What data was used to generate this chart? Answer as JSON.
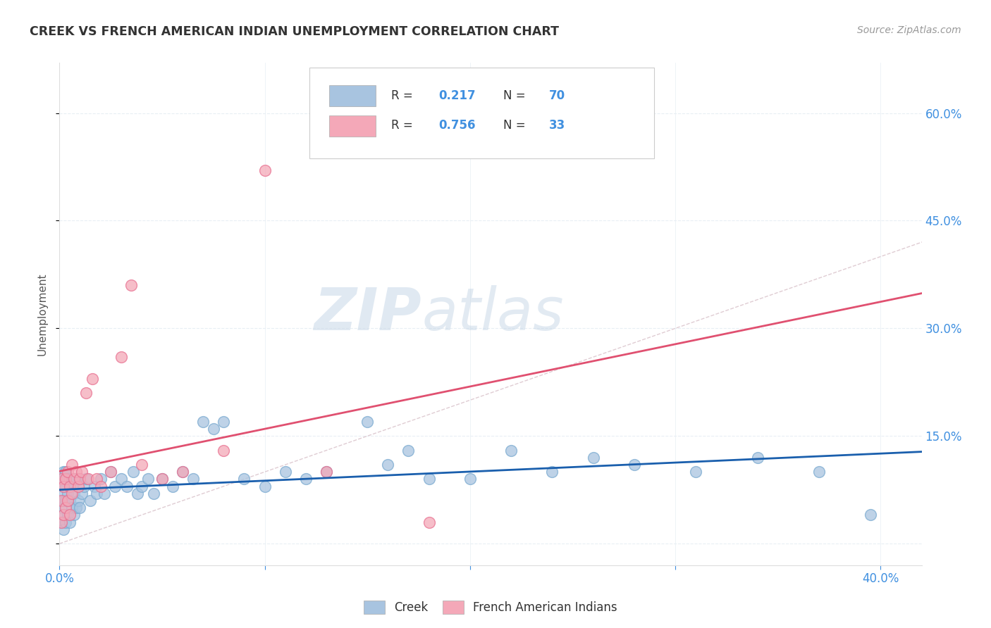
{
  "title": "CREEK VS FRENCH AMERICAN INDIAN UNEMPLOYMENT CORRELATION CHART",
  "source": "Source: ZipAtlas.com",
  "ylabel": "Unemployment",
  "xlim": [
    0.0,
    0.42
  ],
  "ylim": [
    -0.03,
    0.67
  ],
  "creek_R": 0.217,
  "creek_N": 70,
  "french_R": 0.756,
  "french_N": 33,
  "creek_color": "#a8c4e0",
  "creek_edge_color": "#7aaad0",
  "french_color": "#f4a8b8",
  "french_edge_color": "#e87090",
  "creek_line_color": "#1a5fad",
  "french_line_color": "#e05070",
  "diagonal_color": "#d8c0c8",
  "tick_label_color": "#4090e0",
  "title_color": "#333333",
  "source_color": "#999999",
  "watermark_color": "#dce8f4",
  "grid_color": "#e8eef4",
  "legend_text_color": "#333333",
  "legend_value_color": "#4090e0",
  "creek_x": [
    0.001,
    0.001,
    0.001,
    0.001,
    0.002,
    0.002,
    0.002,
    0.002,
    0.002,
    0.003,
    0.003,
    0.003,
    0.003,
    0.004,
    0.004,
    0.004,
    0.005,
    0.005,
    0.005,
    0.006,
    0.006,
    0.007,
    0.007,
    0.008,
    0.008,
    0.009,
    0.01,
    0.01,
    0.011,
    0.012,
    0.013,
    0.015,
    0.017,
    0.018,
    0.02,
    0.022,
    0.025,
    0.027,
    0.03,
    0.033,
    0.036,
    0.038,
    0.04,
    0.043,
    0.046,
    0.05,
    0.055,
    0.06,
    0.065,
    0.07,
    0.075,
    0.08,
    0.09,
    0.1,
    0.11,
    0.12,
    0.13,
    0.15,
    0.16,
    0.17,
    0.18,
    0.2,
    0.22,
    0.24,
    0.26,
    0.28,
    0.31,
    0.34,
    0.37,
    0.395
  ],
  "creek_y": [
    0.03,
    0.05,
    0.07,
    0.09,
    0.02,
    0.04,
    0.06,
    0.08,
    0.1,
    0.03,
    0.06,
    0.08,
    0.1,
    0.04,
    0.07,
    0.09,
    0.03,
    0.06,
    0.09,
    0.05,
    0.08,
    0.04,
    0.07,
    0.05,
    0.09,
    0.06,
    0.05,
    0.09,
    0.07,
    0.08,
    0.09,
    0.06,
    0.08,
    0.07,
    0.09,
    0.07,
    0.1,
    0.08,
    0.09,
    0.08,
    0.1,
    0.07,
    0.08,
    0.09,
    0.07,
    0.09,
    0.08,
    0.1,
    0.09,
    0.17,
    0.16,
    0.17,
    0.09,
    0.08,
    0.1,
    0.09,
    0.1,
    0.17,
    0.11,
    0.13,
    0.09,
    0.09,
    0.13,
    0.1,
    0.12,
    0.11,
    0.1,
    0.12,
    0.1,
    0.04
  ],
  "french_x": [
    0.001,
    0.001,
    0.001,
    0.002,
    0.002,
    0.003,
    0.003,
    0.004,
    0.004,
    0.005,
    0.005,
    0.006,
    0.006,
    0.007,
    0.008,
    0.009,
    0.01,
    0.011,
    0.013,
    0.014,
    0.016,
    0.018,
    0.02,
    0.025,
    0.03,
    0.035,
    0.04,
    0.05,
    0.06,
    0.08,
    0.1,
    0.13,
    0.18
  ],
  "french_y": [
    0.03,
    0.06,
    0.09,
    0.04,
    0.08,
    0.05,
    0.09,
    0.06,
    0.1,
    0.04,
    0.08,
    0.07,
    0.11,
    0.09,
    0.1,
    0.08,
    0.09,
    0.1,
    0.21,
    0.09,
    0.23,
    0.09,
    0.08,
    0.1,
    0.26,
    0.36,
    0.11,
    0.09,
    0.1,
    0.13,
    0.52,
    0.1,
    0.03
  ],
  "watermark_zip": "ZIP",
  "watermark_atlas": "atlas",
  "background_color": "#ffffff"
}
